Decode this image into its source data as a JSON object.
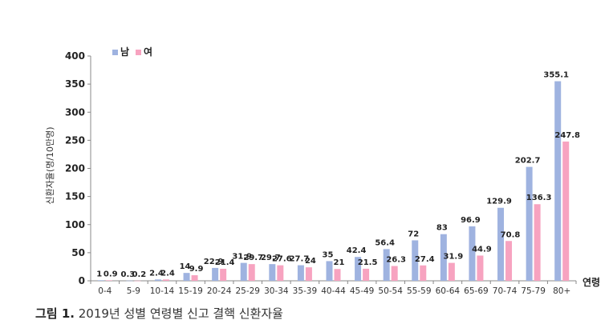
{
  "chart_data": {
    "type": "bar",
    "categories": [
      "0-4",
      "5-9",
      "10-14",
      "15-19",
      "20-24",
      "25-29",
      "30-34",
      "35-39",
      "40-44",
      "45-49",
      "50-54",
      "55-59",
      "60-64",
      "65-69",
      "70-74",
      "75-79",
      "80+"
    ],
    "series": [
      {
        "name": "남",
        "color": "#9fb3e0",
        "values": [
          1,
          0.3,
          2.4,
          14,
          22.9,
          31.9,
          29.7,
          27.7,
          35,
          42.4,
          56.4,
          72,
          83,
          96.9,
          129.9,
          202.7,
          355.1
        ],
        "labels": [
          "1",
          "0.3",
          "2.4",
          "14",
          "22.9",
          "31.9",
          "29.7",
          "27.7",
          "35",
          "42.4",
          "56.4",
          "72",
          "83",
          "96.9",
          "129.9",
          "202.7",
          "355.1"
        ]
      },
      {
        "name": "여",
        "color": "#f7a3c0",
        "values": [
          0.9,
          0.2,
          2.4,
          9.9,
          21.4,
          29.7,
          27.6,
          24,
          21,
          21.5,
          26.3,
          27.4,
          31.9,
          44.9,
          70.8,
          136.3,
          247.8
        ],
        "labels": [
          "0.9",
          "0.2",
          "2.4",
          "9.9",
          "21.4",
          "29.7",
          "27.6",
          "24",
          "21",
          "21.5",
          "26.3",
          "27.4",
          "31.9",
          "44.9",
          "70.8",
          "136.3",
          "247.8"
        ]
      }
    ],
    "ylabel": "신환자율(명/10만명)",
    "xlabel": "연령",
    "ylim": [
      0,
      400
    ],
    "yticks": [
      0,
      50,
      100,
      150,
      200,
      250,
      300,
      350,
      400
    ],
    "grid": false,
    "legend": "top-left"
  },
  "caption": {
    "label": "그림 1.",
    "text": "2019년 성별 연령별 신고 결핵 신환자율"
  }
}
